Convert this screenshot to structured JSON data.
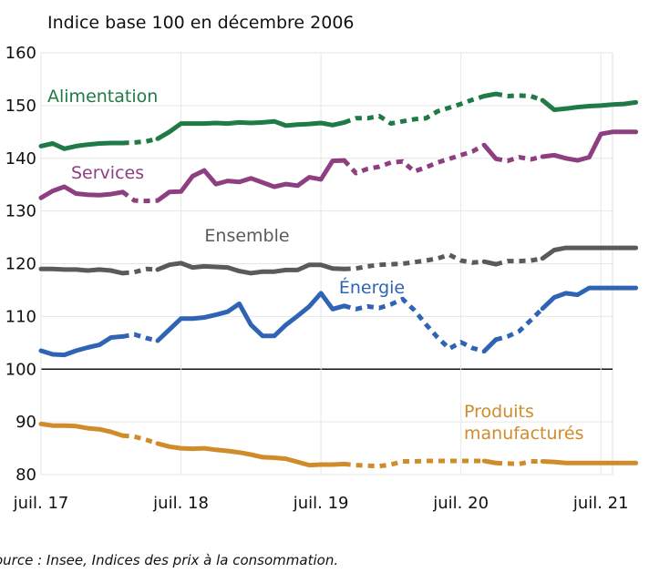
{
  "chart_data": {
    "type": "line",
    "subtitle": "Indice base 100 en décembre 2006",
    "source": "ource : Insee, Indices des prix à la consommation.",
    "ylim": [
      80,
      160
    ],
    "yticks": [
      80,
      90,
      100,
      110,
      120,
      130,
      140,
      150,
      160
    ],
    "xlim": [
      "2017-07",
      "2021-08"
    ],
    "xticks": [
      {
        "label": "juil. 17",
        "x": "2017-07"
      },
      {
        "label": "juil. 18",
        "x": "2018-07"
      },
      {
        "label": "juil. 19",
        "x": "2019-07"
      },
      {
        "label": "juil. 20",
        "x": "2020-07"
      },
      {
        "label": "juil. 21",
        "x": "2021-07"
      }
    ],
    "reference_line": 100,
    "grid": true,
    "series": [
      {
        "name": "Alimentation",
        "color": "#1f7a45",
        "values": [
          142.3,
          142.8,
          141.8,
          142.3,
          142.6,
          142.8,
          142.9,
          142.9,
          143.0,
          143.2,
          143.7,
          145.0,
          146.6,
          146.6,
          146.6,
          146.7,
          146.6,
          146.8,
          146.7,
          146.8,
          147.0,
          146.2,
          146.4,
          146.5,
          146.7,
          146.3,
          146.8,
          147.6,
          147.6,
          148.0,
          146.6,
          147.0,
          147.4,
          147.6,
          148.9,
          149.6,
          150.3,
          151.1,
          151.8,
          152.2,
          151.8,
          151.9,
          151.8,
          151.0,
          149.2,
          149.4,
          149.7,
          149.9,
          150.0,
          150.2,
          150.3,
          150.6
        ]
      },
      {
        "name": "Services",
        "color": "#8e3f80",
        "values": [
          132.5,
          133.8,
          134.6,
          133.3,
          133.1,
          133.0,
          133.2,
          133.6,
          132.0,
          131.9,
          132.0,
          133.6,
          133.7,
          136.6,
          137.7,
          135.1,
          135.7,
          135.5,
          136.2,
          135.4,
          134.6,
          135.1,
          134.8,
          136.4,
          136.0,
          139.5,
          139.6,
          137.2,
          138.0,
          138.4,
          139.2,
          139.4,
          137.5,
          138.3,
          139.2,
          139.9,
          140.6,
          141.3,
          142.5,
          139.9,
          139.5,
          140.2,
          139.8,
          140.3,
          140.6,
          140.0,
          139.6,
          140.2,
          144.6,
          145.0,
          145.0,
          145.0
        ]
      },
      {
        "name": "Ensemble",
        "color": "#5a5a5a",
        "values": [
          119.0,
          119.0,
          118.9,
          118.9,
          118.7,
          118.9,
          118.7,
          118.2,
          118.4,
          119.0,
          118.9,
          119.8,
          120.1,
          119.3,
          119.5,
          119.4,
          119.3,
          118.6,
          118.2,
          118.5,
          118.5,
          118.8,
          118.8,
          119.8,
          119.8,
          119.1,
          119.0,
          119.1,
          119.5,
          119.8,
          119.9,
          120.0,
          120.3,
          120.6,
          121.0,
          121.7,
          120.6,
          120.2,
          120.4,
          119.9,
          120.5,
          120.5,
          120.6,
          121.0,
          122.6,
          123.0,
          123.0,
          123.0,
          123.0,
          123.0,
          123.0,
          123.0
        ]
      },
      {
        "name": "Énergie",
        "color": "#2f64b5",
        "values": [
          103.5,
          102.8,
          102.7,
          103.5,
          104.1,
          104.6,
          106.0,
          106.2,
          106.6,
          105.9,
          105.4,
          107.5,
          109.6,
          109.6,
          109.8,
          110.3,
          110.9,
          112.4,
          108.4,
          106.3,
          106.3,
          108.4,
          110.1,
          111.9,
          114.4,
          111.4,
          112.0,
          111.4,
          111.9,
          111.6,
          112.3,
          113.3,
          111.2,
          108.5,
          106.0,
          103.9,
          105.1,
          104.0,
          103.4,
          105.6,
          106.2,
          107.2,
          109.3,
          111.5,
          113.6,
          114.4,
          114.1,
          115.4,
          115.4,
          115.4,
          115.4,
          115.4
        ]
      },
      {
        "name": "Produits manufacturés",
        "color": "#d08c2a",
        "values": [
          89.6,
          89.3,
          89.3,
          89.2,
          88.8,
          88.6,
          88.1,
          87.4,
          87.2,
          86.6,
          85.9,
          85.3,
          85.0,
          84.9,
          85.0,
          84.7,
          84.5,
          84.2,
          83.8,
          83.3,
          83.2,
          83.0,
          82.4,
          81.8,
          81.9,
          81.9,
          82.0,
          81.8,
          81.7,
          81.6,
          81.9,
          82.5,
          82.5,
          82.6,
          82.6,
          82.6,
          82.6,
          82.6,
          82.6,
          82.2,
          82.1,
          82.0,
          82.5,
          82.5,
          82.4,
          82.2,
          82.2,
          82.2,
          82.2,
          82.2,
          82.2,
          82.2
        ]
      }
    ],
    "dashed_segments": [
      [
        "2018-02",
        "2018-05"
      ],
      [
        "2019-09",
        "2020-09"
      ],
      [
        "2020-10",
        "2021-02"
      ]
    ],
    "label_positions": {
      "Alimentation": "top-left",
      "Services": "left",
      "Ensemble": "center",
      "Énergie": "center",
      "Produits manufacturés": "right"
    }
  }
}
